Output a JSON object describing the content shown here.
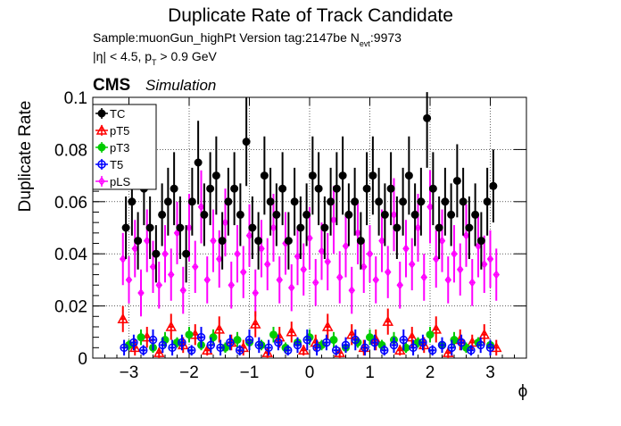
{
  "header": {
    "title": "Duplicate Rate of Track Candidate",
    "sample_prefix": "Sample:muonGun_highPt   Version tag:2147be  N",
    "nevt_sub": "evt",
    "nevt_value": ":9973",
    "cut_prefix": "|η| < 4.5, p",
    "cut_sub": "T",
    "cut_suffix": " > 0.9 GeV",
    "cms": "CMS",
    "simulation": "Simulation"
  },
  "chart_data": {
    "type": "scatter",
    "xlabel": "ϕ",
    "ylabel": "Duplicate Rate",
    "xlim": [
      -3.6,
      3.6
    ],
    "ylim": [
      0,
      0.1
    ],
    "x_ticks": [
      -3,
      -2,
      -1,
      0,
      1,
      2,
      3
    ],
    "x_tick_labels": [
      "−3",
      "−2",
      "−1",
      "0",
      "1",
      "2",
      "3"
    ],
    "y_ticks": [
      0,
      0.02,
      0.04,
      0.06,
      0.08,
      0.1
    ],
    "y_tick_labels": [
      "0",
      "0.02",
      "0.04",
      "0.06",
      "0.08",
      "0.1"
    ],
    "grid": true,
    "legend_position": "top-left",
    "series": [
      {
        "name": "TC",
        "color": "#000000",
        "marker": "filled-circle",
        "x": [
          -3.05,
          -2.95,
          -2.85,
          -2.75,
          -2.65,
          -2.55,
          -2.45,
          -2.35,
          -2.25,
          -2.15,
          -2.05,
          -1.95,
          -1.85,
          -1.75,
          -1.65,
          -1.55,
          -1.45,
          -1.35,
          -1.25,
          -1.15,
          -1.05,
          -0.95,
          -0.85,
          -0.75,
          -0.65,
          -0.55,
          -0.45,
          -0.35,
          -0.25,
          -0.15,
          -0.05,
          0.05,
          0.15,
          0.25,
          0.35,
          0.45,
          0.55,
          0.65,
          0.75,
          0.85,
          0.95,
          1.05,
          1.15,
          1.25,
          1.35,
          1.45,
          1.55,
          1.65,
          1.75,
          1.85,
          1.95,
          2.05,
          2.15,
          2.25,
          2.35,
          2.45,
          2.55,
          2.65,
          2.75,
          2.85,
          2.95,
          3.05
        ],
        "y": [
          0.05,
          0.06,
          0.045,
          0.065,
          0.05,
          0.04,
          0.055,
          0.06,
          0.065,
          0.05,
          0.04,
          0.06,
          0.075,
          0.055,
          0.065,
          0.07,
          0.045,
          0.06,
          0.065,
          0.055,
          0.083,
          0.05,
          0.045,
          0.07,
          0.06,
          0.055,
          0.065,
          0.045,
          0.06,
          0.05,
          0.055,
          0.07,
          0.065,
          0.05,
          0.06,
          0.065,
          0.07,
          0.055,
          0.06,
          0.045,
          0.065,
          0.07,
          0.06,
          0.055,
          0.065,
          0.05,
          0.06,
          0.07,
          0.055,
          0.06,
          0.092,
          0.065,
          0.05,
          0.06,
          0.055,
          0.068,
          0.06,
          0.05,
          0.055,
          0.045,
          0.06,
          0.066
        ],
        "err": [
          0.012,
          0.013,
          0.011,
          0.014,
          0.012,
          0.011,
          0.012,
          0.013,
          0.014,
          0.012,
          0.011,
          0.013,
          0.016,
          0.012,
          0.014,
          0.015,
          0.011,
          0.013,
          0.014,
          0.012,
          0.017,
          0.012,
          0.011,
          0.015,
          0.013,
          0.012,
          0.014,
          0.011,
          0.013,
          0.012,
          0.012,
          0.015,
          0.014,
          0.012,
          0.013,
          0.014,
          0.015,
          0.012,
          0.013,
          0.011,
          0.014,
          0.015,
          0.013,
          0.012,
          0.014,
          0.012,
          0.013,
          0.015,
          0.012,
          0.013,
          0.019,
          0.014,
          0.012,
          0.013,
          0.012,
          0.014,
          0.013,
          0.012,
          0.012,
          0.011,
          0.013,
          0.014
        ]
      },
      {
        "name": "pT5",
        "color": "#ff0000",
        "marker": "open-triangle",
        "x": [
          -3.1,
          -2.9,
          -2.7,
          -2.5,
          -2.3,
          -2.1,
          -1.9,
          -1.7,
          -1.5,
          -1.3,
          -1.1,
          -0.9,
          -0.7,
          -0.5,
          -0.3,
          -0.1,
          0.1,
          0.3,
          0.5,
          0.7,
          0.9,
          1.1,
          1.3,
          1.5,
          1.7,
          1.9,
          2.1,
          2.3,
          2.5,
          2.7,
          2.9,
          3.1
        ],
        "y": [
          0.015,
          0.004,
          0.008,
          0.002,
          0.012,
          0.005,
          0.009,
          0.003,
          0.011,
          0.006,
          0.004,
          0.013,
          0.002,
          0.008,
          0.01,
          0.003,
          0.006,
          0.012,
          0.002,
          0.009,
          0.004,
          0.007,
          0.014,
          0.003,
          0.008,
          0.005,
          0.011,
          0.002,
          0.007,
          0.006,
          0.009,
          0.004
        ],
        "err": [
          0.005,
          0.003,
          0.004,
          0.002,
          0.005,
          0.003,
          0.004,
          0.002,
          0.005,
          0.003,
          0.003,
          0.005,
          0.002,
          0.004,
          0.004,
          0.002,
          0.003,
          0.005,
          0.002,
          0.004,
          0.003,
          0.004,
          0.005,
          0.002,
          0.004,
          0.003,
          0.005,
          0.002,
          0.004,
          0.003,
          0.004,
          0.003
        ]
      },
      {
        "name": "pT3",
        "color": "#00cc00",
        "marker": "filled-circle",
        "x": [
          -3.0,
          -2.8,
          -2.6,
          -2.4,
          -2.2,
          -2.0,
          -1.8,
          -1.6,
          -1.4,
          -1.2,
          -1.0,
          -0.8,
          -0.6,
          -0.4,
          -0.2,
          0.0,
          0.2,
          0.4,
          0.6,
          0.8,
          1.0,
          1.2,
          1.4,
          1.6,
          1.8,
          2.0,
          2.2,
          2.4,
          2.6,
          2.8,
          3.0
        ],
        "y": [
          0.005,
          0.008,
          0.004,
          0.007,
          0.006,
          0.009,
          0.005,
          0.008,
          0.004,
          0.007,
          0.006,
          0.005,
          0.009,
          0.004,
          0.006,
          0.008,
          0.005,
          0.007,
          0.004,
          0.006,
          0.008,
          0.005,
          0.007,
          0.004,
          0.006,
          0.009,
          0.005,
          0.007,
          0.004,
          0.006,
          0.005
        ],
        "err": [
          0.002,
          0.003,
          0.002,
          0.003,
          0.002,
          0.003,
          0.002,
          0.003,
          0.002,
          0.003,
          0.002,
          0.002,
          0.003,
          0.002,
          0.002,
          0.003,
          0.002,
          0.003,
          0.002,
          0.002,
          0.003,
          0.002,
          0.003,
          0.002,
          0.002,
          0.003,
          0.002,
          0.003,
          0.002,
          0.002,
          0.002
        ]
      },
      {
        "name": "T5",
        "color": "#0000ff",
        "marker": "open-circle",
        "x": [
          -3.08,
          -2.92,
          -2.76,
          -2.6,
          -2.44,
          -2.28,
          -2.12,
          -1.96,
          -1.8,
          -1.64,
          -1.48,
          -1.32,
          -1.16,
          -1.0,
          -0.84,
          -0.68,
          -0.52,
          -0.36,
          -0.2,
          -0.04,
          0.12,
          0.28,
          0.44,
          0.6,
          0.76,
          0.92,
          1.08,
          1.24,
          1.4,
          1.56,
          1.72,
          1.88,
          2.04,
          2.2,
          2.36,
          2.52,
          2.68,
          2.84,
          3.0
        ],
        "y": [
          0.004,
          0.006,
          0.003,
          0.007,
          0.005,
          0.004,
          0.006,
          0.003,
          0.008,
          0.005,
          0.004,
          0.006,
          0.003,
          0.007,
          0.005,
          0.004,
          0.006,
          0.003,
          0.005,
          0.007,
          0.004,
          0.006,
          0.003,
          0.005,
          0.007,
          0.004,
          0.006,
          0.003,
          0.005,
          0.007,
          0.004,
          0.006,
          0.003,
          0.005,
          0.004,
          0.006,
          0.003,
          0.005,
          0.004
        ],
        "err": [
          0.003,
          0.003,
          0.002,
          0.004,
          0.003,
          0.003,
          0.003,
          0.002,
          0.004,
          0.003,
          0.003,
          0.003,
          0.002,
          0.004,
          0.003,
          0.003,
          0.003,
          0.002,
          0.003,
          0.004,
          0.003,
          0.003,
          0.002,
          0.003,
          0.004,
          0.003,
          0.003,
          0.002,
          0.003,
          0.004,
          0.003,
          0.003,
          0.002,
          0.003,
          0.003,
          0.003,
          0.002,
          0.003,
          0.003
        ]
      },
      {
        "name": "pLS",
        "color": "#ff00ff",
        "marker": "open-diamond",
        "x": [
          -3.1,
          -3.0,
          -2.9,
          -2.8,
          -2.7,
          -2.6,
          -2.5,
          -2.4,
          -2.3,
          -2.2,
          -2.1,
          -2.0,
          -1.9,
          -1.8,
          -1.7,
          -1.6,
          -1.5,
          -1.4,
          -1.3,
          -1.2,
          -1.1,
          -1.0,
          -0.9,
          -0.8,
          -0.7,
          -0.6,
          -0.5,
          -0.4,
          -0.3,
          -0.2,
          -0.1,
          0.0,
          0.1,
          0.2,
          0.3,
          0.4,
          0.5,
          0.6,
          0.7,
          0.8,
          0.9,
          1.0,
          1.1,
          1.2,
          1.3,
          1.4,
          1.5,
          1.6,
          1.7,
          1.8,
          1.9,
          2.0,
          2.1,
          2.2,
          2.3,
          2.4,
          2.5,
          2.6,
          2.7,
          2.8,
          2.9,
          3.0,
          3.1
        ],
        "y": [
          0.038,
          0.03,
          0.042,
          0.025,
          0.045,
          0.035,
          0.028,
          0.04,
          0.032,
          0.048,
          0.026,
          0.05,
          0.035,
          0.058,
          0.03,
          0.045,
          0.038,
          0.052,
          0.028,
          0.04,
          0.033,
          0.047,
          0.025,
          0.042,
          0.036,
          0.05,
          0.03,
          0.044,
          0.027,
          0.039,
          0.034,
          0.046,
          0.029,
          0.041,
          0.037,
          0.053,
          0.031,
          0.043,
          0.026,
          0.048,
          0.035,
          0.04,
          0.03,
          0.045,
          0.033,
          0.055,
          0.028,
          0.042,
          0.036,
          0.05,
          0.031,
          0.058,
          0.038,
          0.045,
          0.03,
          0.04,
          0.034,
          0.047,
          0.029,
          0.043,
          0.036,
          0.038,
          0.032
        ],
        "err": [
          0.01,
          0.009,
          0.011,
          0.009,
          0.012,
          0.01,
          0.009,
          0.011,
          0.01,
          0.012,
          0.009,
          0.013,
          0.01,
          0.014,
          0.009,
          0.012,
          0.011,
          0.013,
          0.009,
          0.011,
          0.01,
          0.012,
          0.009,
          0.011,
          0.01,
          0.013,
          0.009,
          0.012,
          0.009,
          0.011,
          0.01,
          0.012,
          0.009,
          0.011,
          0.011,
          0.013,
          0.01,
          0.012,
          0.009,
          0.012,
          0.01,
          0.011,
          0.009,
          0.012,
          0.01,
          0.014,
          0.009,
          0.011,
          0.01,
          0.013,
          0.009,
          0.014,
          0.011,
          0.012,
          0.009,
          0.011,
          0.01,
          0.012,
          0.009,
          0.012,
          0.011,
          0.011,
          0.01
        ]
      }
    ]
  }
}
